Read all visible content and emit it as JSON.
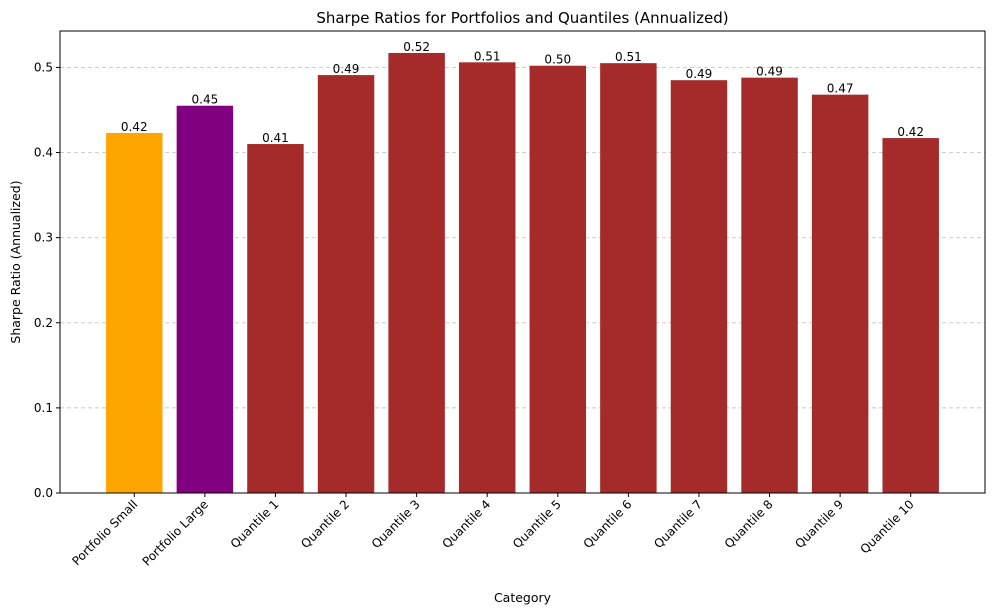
{
  "chart_data": {
    "type": "bar",
    "title": "Sharpe Ratios for Portfolios and Quantiles (Annualized)",
    "xlabel": "Category",
    "ylabel": "Sharpe Ratio (Annualized)",
    "categories": [
      "Portfolio Small",
      "Portfolio Large",
      "Quantile 1",
      "Quantile 2",
      "Quantile 3",
      "Quantile 4",
      "Quantile 5",
      "Quantile 6",
      "Quantile 7",
      "Quantile 8",
      "Quantile 9",
      "Quantile 10"
    ],
    "values": [
      0.423,
      0.455,
      0.41,
      0.491,
      0.517,
      0.506,
      0.502,
      0.505,
      0.485,
      0.488,
      0.468,
      0.417
    ],
    "data_labels": [
      "0.42",
      "0.45",
      "0.41",
      "0.49",
      "0.52",
      "0.51",
      "0.50",
      "0.51",
      "0.49",
      "0.49",
      "0.47",
      "0.42"
    ],
    "colors": [
      "#FFA500",
      "#800080",
      "#A52A2A",
      "#A52A2A",
      "#A52A2A",
      "#A52A2A",
      "#A52A2A",
      "#A52A2A",
      "#A52A2A",
      "#A52A2A",
      "#A52A2A",
      "#A52A2A"
    ],
    "ylim": [
      0,
      0.5428
    ],
    "yticks": [
      "0.0",
      "0.1",
      "0.2",
      "0.3",
      "0.4",
      "0.5"
    ],
    "grid": "y-dashed",
    "xtick_rotation": 45
  }
}
